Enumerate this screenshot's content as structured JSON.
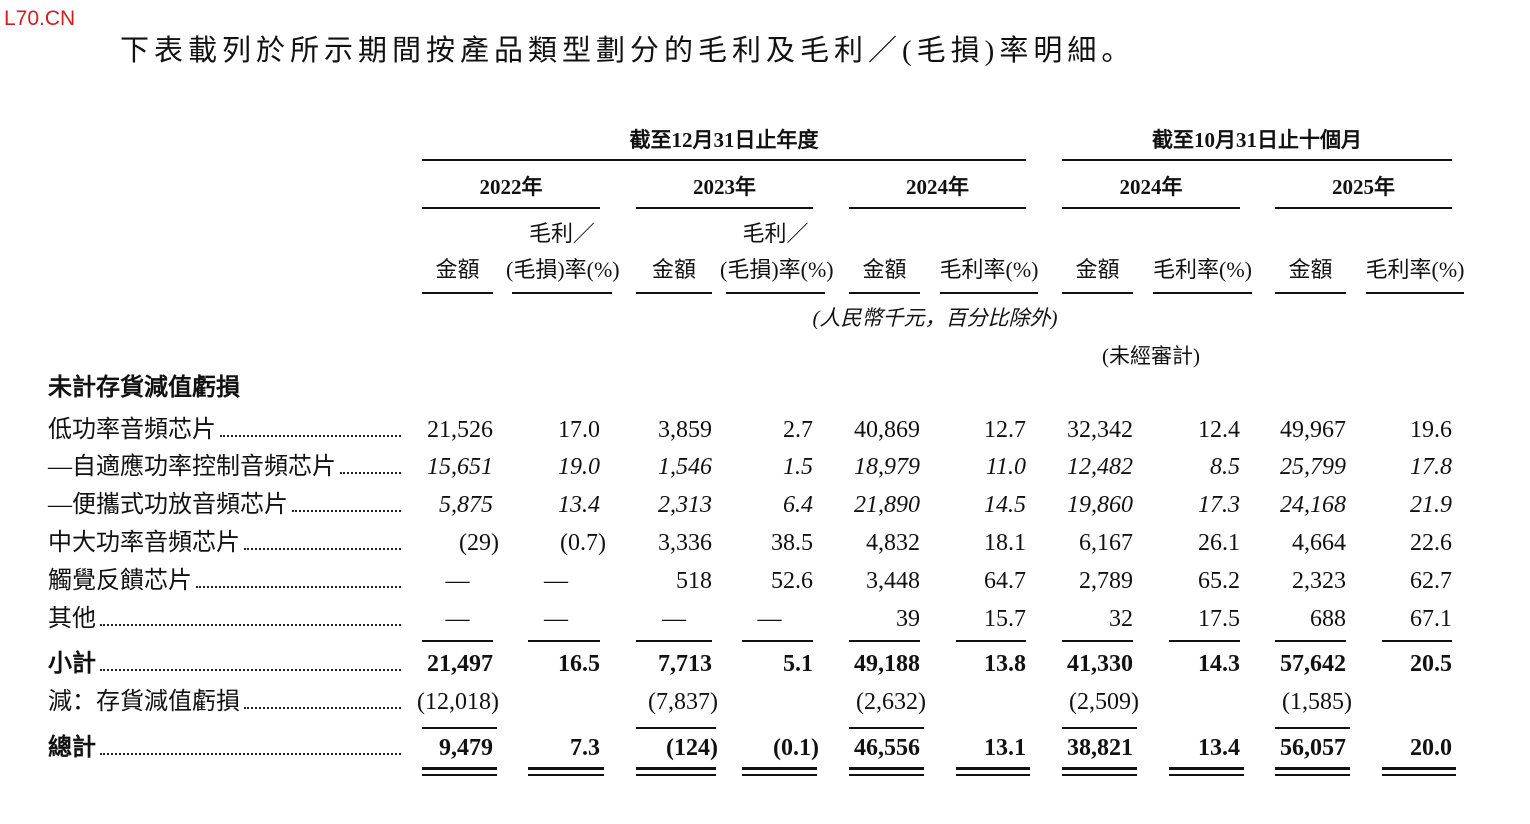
{
  "watermark": "L70.CN",
  "intro": "下表載列於所示期間按產品類型劃分的毛利及毛利／(毛損)率明細。",
  "table": {
    "group_headers": [
      "截至12月31日止年度",
      "截至10月31日止十個月"
    ],
    "year_headers": [
      "2022年",
      "2023年",
      "2024年",
      "2024年",
      "2025年"
    ],
    "column_headers": [
      [
        [
          "金額"
        ],
        [
          "毛利／",
          "(毛損)率(%)"
        ]
      ],
      [
        [
          "金額"
        ],
        [
          "毛利／",
          "(毛損)率(%)"
        ]
      ],
      [
        [
          "金額"
        ],
        [
          "毛利率(%)"
        ]
      ],
      [
        [
          "金額"
        ],
        [
          "毛利率(%)"
        ]
      ],
      [
        [
          "金額"
        ],
        [
          "毛利率(%)"
        ]
      ]
    ],
    "unit_note": "(人民幣千元，百分比除外)",
    "unaudited_note": "(未經審計)",
    "section_title": "未計存貨減值虧損",
    "rows": [
      {
        "label": "低功率音頻芯片",
        "style": "normal",
        "values": [
          "21,526",
          "17.0",
          "3,859",
          "2.7",
          "40,869",
          "12.7",
          "32,342",
          "12.4",
          "49,967",
          "19.6"
        ]
      },
      {
        "label": "—自適應功率控制音頻芯片",
        "style": "italic",
        "values": [
          "15,651",
          "19.0",
          "1,546",
          "1.5",
          "18,979",
          "11.0",
          "12,482",
          "8.5",
          "25,799",
          "17.8"
        ]
      },
      {
        "label": "—便攜式功放音頻芯片",
        "style": "italic",
        "values": [
          "5,875",
          "13.4",
          "2,313",
          "6.4",
          "21,890",
          "14.5",
          "19,860",
          "17.3",
          "24,168",
          "21.9"
        ]
      },
      {
        "label": "中大功率音頻芯片",
        "style": "normal",
        "values": [
          "(29)",
          "(0.7)",
          "3,336",
          "38.5",
          "4,832",
          "18.1",
          "6,167",
          "26.1",
          "4,664",
          "22.6"
        ]
      },
      {
        "label": "觸覺反饋芯片",
        "style": "normal",
        "values": [
          "—",
          "—",
          "518",
          "52.6",
          "3,448",
          "64.7",
          "2,789",
          "65.2",
          "2,323",
          "62.7"
        ]
      },
      {
        "label": "其他",
        "style": "normal",
        "values": [
          "—",
          "—",
          "—",
          "—",
          "39",
          "15.7",
          "32",
          "17.5",
          "688",
          "67.1"
        ]
      },
      {
        "label": "小計",
        "style": "bold",
        "values": [
          "21,497",
          "16.5",
          "7,713",
          "5.1",
          "49,188",
          "13.8",
          "41,330",
          "14.3",
          "57,642",
          "20.5"
        ]
      },
      {
        "label": "減：存貨減值虧損",
        "style": "normal",
        "values": [
          "(12,018)",
          null,
          "(7,837)",
          null,
          "(2,632)",
          null,
          "(2,509)",
          null,
          "(1,585)",
          null
        ]
      },
      {
        "label": "總計",
        "style": "bold",
        "values": [
          "9,479",
          "7.3",
          "(124)",
          "(0.1)",
          "46,556",
          "13.1",
          "38,821",
          "13.4",
          "56,057",
          "20.0"
        ]
      }
    ]
  }
}
